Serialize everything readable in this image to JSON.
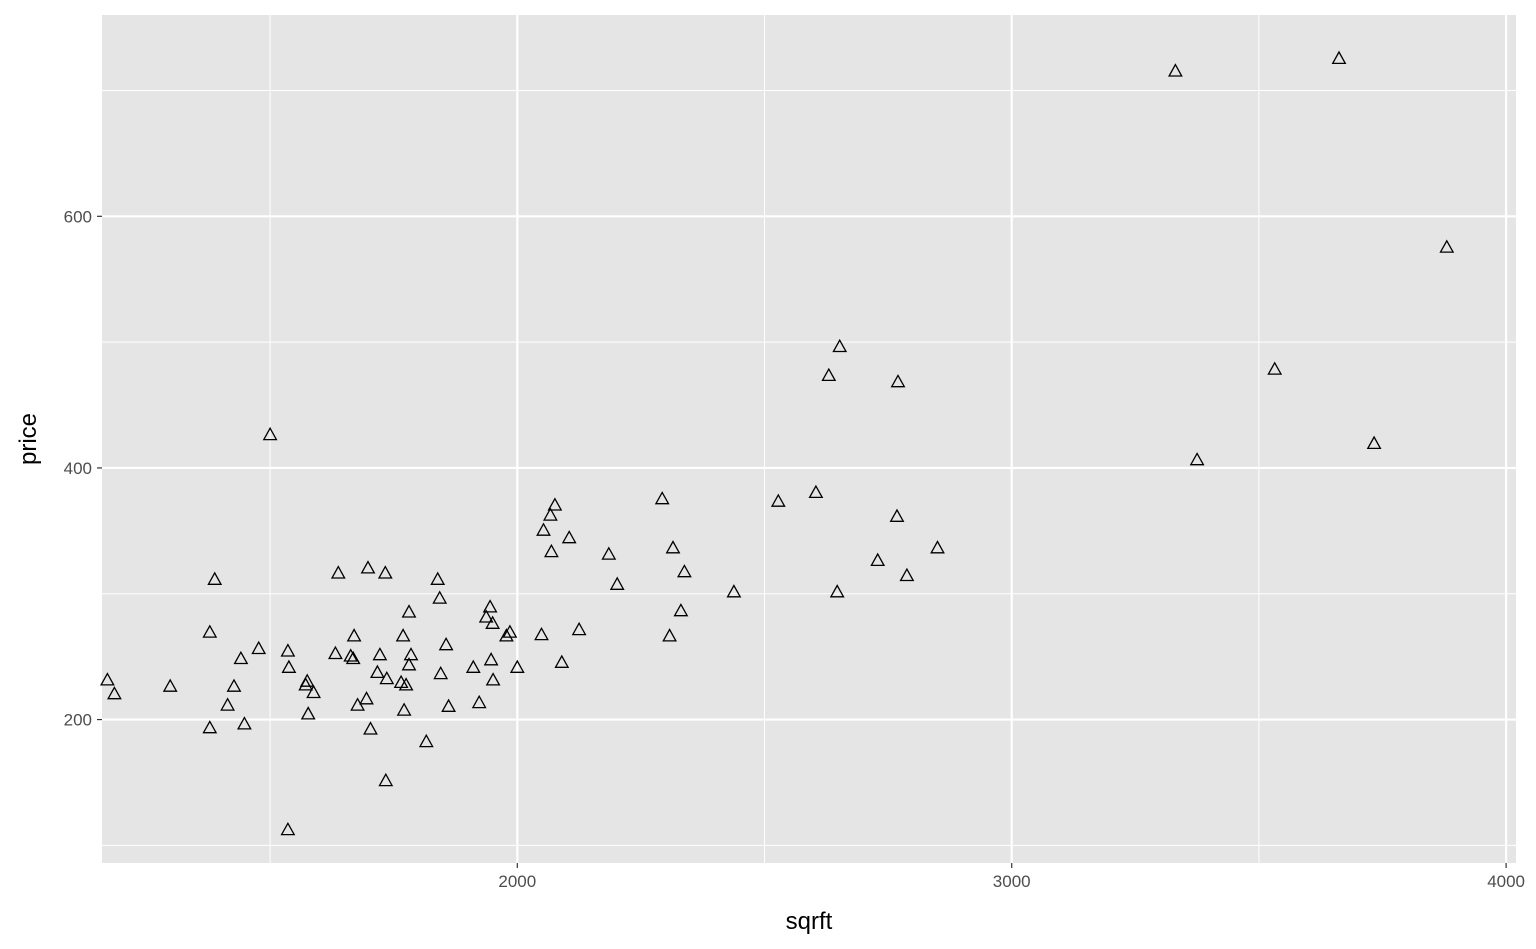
{
  "chart_data": {
    "type": "scatter",
    "xlabel": "sqrft",
    "ylabel": "price",
    "xlim": [
      1160,
      4020
    ],
    "ylim": [
      86,
      760
    ],
    "x_ticks": [
      2000,
      3000,
      4000
    ],
    "x_minor_ticks": [
      1500,
      2500,
      3500
    ],
    "y_ticks": [
      200,
      400,
      600
    ],
    "y_minor_ticks": [
      100,
      300,
      500,
      700
    ],
    "grid": true,
    "marker": "open-triangle",
    "points": [
      [
        1171,
        231
      ],
      [
        1185,
        220
      ],
      [
        1298,
        226
      ],
      [
        1378,
        193
      ],
      [
        1378,
        269
      ],
      [
        1388,
        311
      ],
      [
        1414,
        211
      ],
      [
        1427,
        226
      ],
      [
        1441,
        248
      ],
      [
        1448,
        196
      ],
      [
        1477,
        256
      ],
      [
        1500,
        426
      ],
      [
        1536,
        112
      ],
      [
        1536,
        254
      ],
      [
        1538,
        241
      ],
      [
        1572,
        227
      ],
      [
        1575,
        230
      ],
      [
        1577,
        204
      ],
      [
        1588,
        221
      ],
      [
        1632,
        252
      ],
      [
        1638,
        316
      ],
      [
        1663,
        250
      ],
      [
        1668,
        248
      ],
      [
        1670,
        266
      ],
      [
        1677,
        211
      ],
      [
        1695,
        216
      ],
      [
        1698,
        320
      ],
      [
        1703,
        192
      ],
      [
        1717,
        237
      ],
      [
        1722,
        251
      ],
      [
        1733,
        316
      ],
      [
        1734,
        151
      ],
      [
        1736,
        232
      ],
      [
        1765,
        229
      ],
      [
        1769,
        266
      ],
      [
        1771,
        207
      ],
      [
        1775,
        227
      ],
      [
        1781,
        243
      ],
      [
        1781,
        285
      ],
      [
        1785,
        251
      ],
      [
        1816,
        182
      ],
      [
        1839,
        311
      ],
      [
        1843,
        296
      ],
      [
        1845,
        236
      ],
      [
        1856,
        259
      ],
      [
        1861,
        210
      ],
      [
        1911,
        241
      ],
      [
        1923,
        213
      ],
      [
        1937,
        281
      ],
      [
        1945,
        289
      ],
      [
        1947,
        247
      ],
      [
        1950,
        276
      ],
      [
        1951,
        231
      ],
      [
        1978,
        266
      ],
      [
        1985,
        269
      ],
      [
        2000,
        241
      ],
      [
        2049,
        267
      ],
      [
        2053,
        350
      ],
      [
        2067,
        362
      ],
      [
        2069,
        333
      ],
      [
        2076,
        370
      ],
      [
        2090,
        245
      ],
      [
        2105,
        344
      ],
      [
        2125,
        271
      ],
      [
        2185,
        331
      ],
      [
        2202,
        307
      ],
      [
        2293,
        375
      ],
      [
        2308,
        266
      ],
      [
        2315,
        336
      ],
      [
        2331,
        286
      ],
      [
        2338,
        317
      ],
      [
        2438,
        301
      ],
      [
        2528,
        373
      ],
      [
        2604,
        380
      ],
      [
        2630,
        473
      ],
      [
        2647,
        301
      ],
      [
        2652,
        496
      ],
      [
        2729,
        326
      ],
      [
        2768,
        361
      ],
      [
        2770,
        468
      ],
      [
        2788,
        314
      ],
      [
        2850,
        336
      ],
      [
        3331,
        715
      ],
      [
        3375,
        406
      ],
      [
        3532,
        478
      ],
      [
        3662,
        725
      ],
      [
        3733,
        419
      ],
      [
        3880,
        575
      ]
    ]
  }
}
